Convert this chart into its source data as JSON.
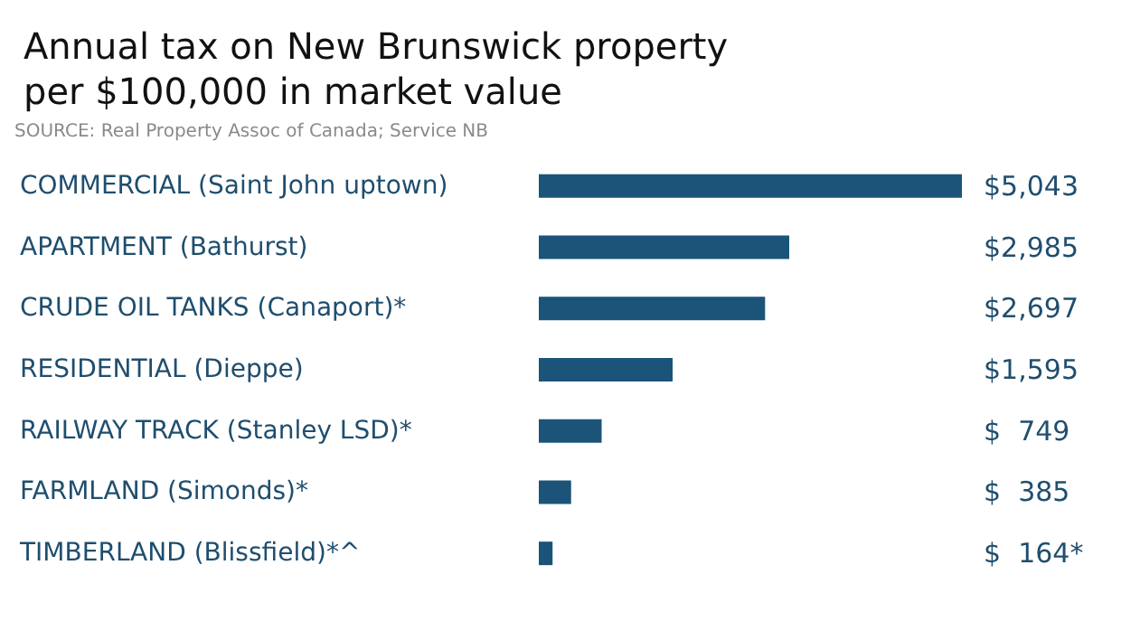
{
  "chart_data": {
    "type": "bar",
    "orientation": "horizontal",
    "title": "Annual tax on New Brunswick property\nper $100,000 in market value",
    "annotations": [
      "SOURCE: Real Property Assoc of Canada; Service NB"
    ],
    "categories": [
      "COMMERCIAL (Saint John uptown)",
      "APARTMENT (Bathurst)",
      "CRUDE OIL TANKS (Canaport)*",
      "RESIDENTIAL (Dieppe)",
      "RAILWAY TRACK (Stanley LSD)*",
      "FARMLAND (Simonds)*",
      "TIMBERLAND (Blissfield)*^"
    ],
    "values": [
      5043,
      2985,
      2697,
      1595,
      749,
      385,
      164
    ],
    "value_labels": [
      "$5,043",
      "$2,985",
      "$2,697",
      "$1,595",
      "$  749",
      "$  385",
      "$  164*"
    ],
    "color": "#1b5478",
    "tick_labels": "y"
  }
}
